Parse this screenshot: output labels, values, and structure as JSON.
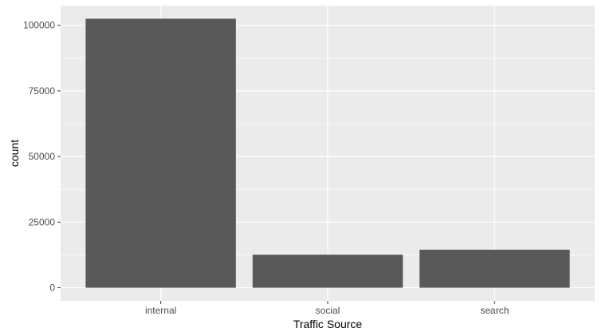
{
  "chart_data": {
    "type": "bar",
    "title": "",
    "xlabel": "Traffic Source",
    "ylabel": "count",
    "categories": [
      "internal",
      "social",
      "search"
    ],
    "values": [
      102500,
      12600,
      14500
    ],
    "ylim": [
      -5000,
      107500
    ],
    "yticks": [
      0,
      25000,
      50000,
      75000,
      100000
    ],
    "ytick_labels": [
      "0",
      "25000",
      "50000",
      "75000",
      "100000"
    ],
    "grid": true,
    "legend": "none",
    "colors": {
      "panel_background": "#ebebeb",
      "grid_major": "#ffffff",
      "bar_fill": "#595959",
      "tick_mark": "#333333"
    }
  }
}
